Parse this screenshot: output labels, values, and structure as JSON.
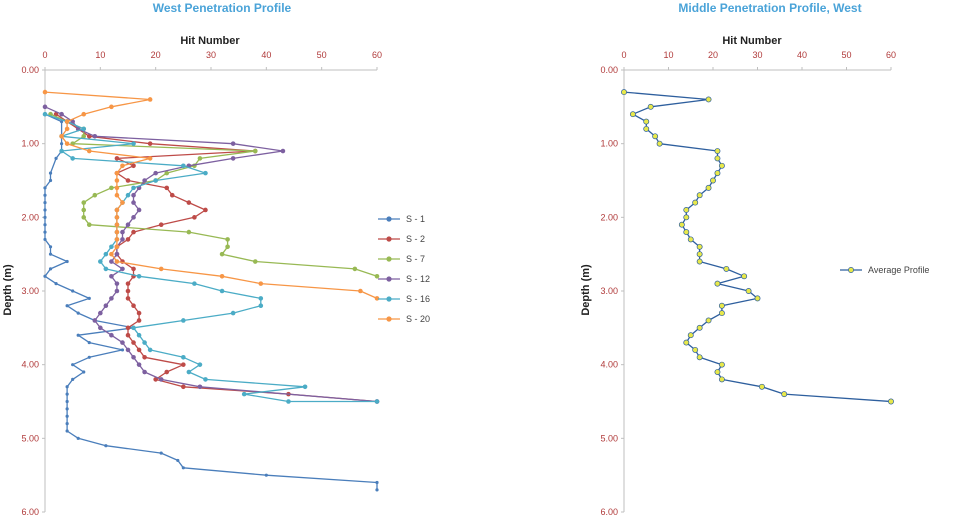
{
  "chart_data": [
    {
      "type": "line",
      "title": "West Penetration Profile",
      "xlabel": "Hit Number",
      "ylabel": "Depth (m)",
      "xlim": [
        0,
        60
      ],
      "ylim": [
        0,
        6
      ],
      "x_ticks": [
        "0",
        "10",
        "20",
        "30",
        "40",
        "50",
        "60"
      ],
      "y_ticks": [
        "0.00",
        "1.00",
        "2.00",
        "3.00",
        "4.00",
        "5.00",
        "6.00"
      ],
      "legend_position": "right",
      "series": [
        {
          "name": "S - 1",
          "color": "#4a7ebb",
          "marker": "small",
          "points": [
            [
              0,
              0.6
            ],
            [
              3,
              0.7
            ],
            [
              3,
              1.0
            ],
            [
              3,
              1.1
            ],
            [
              2,
              1.2
            ],
            [
              1,
              1.4
            ],
            [
              1,
              1.5
            ],
            [
              0,
              1.6
            ],
            [
              0,
              1.7
            ],
            [
              0,
              1.8
            ],
            [
              0,
              1.9
            ],
            [
              0,
              2.0
            ],
            [
              0,
              2.1
            ],
            [
              0,
              2.2
            ],
            [
              0,
              2.3
            ],
            [
              1,
              2.4
            ],
            [
              1,
              2.5
            ],
            [
              4,
              2.6
            ],
            [
              1,
              2.7
            ],
            [
              0,
              2.8
            ],
            [
              2,
              2.9
            ],
            [
              5,
              3.0
            ],
            [
              8,
              3.1
            ],
            [
              4,
              3.2
            ],
            [
              6,
              3.3
            ],
            [
              9,
              3.4
            ],
            [
              16,
              3.5
            ],
            [
              6,
              3.6
            ],
            [
              8,
              3.7
            ],
            [
              14,
              3.8
            ],
            [
              8,
              3.9
            ],
            [
              5,
              4.0
            ],
            [
              7,
              4.1
            ],
            [
              5,
              4.2
            ],
            [
              4,
              4.3
            ],
            [
              4,
              4.4
            ],
            [
              4,
              4.5
            ],
            [
              4,
              4.6
            ],
            [
              4,
              4.7
            ],
            [
              4,
              4.8
            ],
            [
              4,
              4.9
            ],
            [
              6,
              5.0
            ],
            [
              11,
              5.1
            ],
            [
              21,
              5.2
            ],
            [
              24,
              5.3
            ],
            [
              25,
              5.4
            ],
            [
              40,
              5.5
            ],
            [
              60,
              5.6
            ],
            [
              60,
              5.7
            ]
          ]
        },
        {
          "name": "S - 2",
          "color": "#be4b48",
          "marker": "circle",
          "points": [
            [
              2,
              0.6
            ],
            [
              4,
              0.7
            ],
            [
              6,
              0.8
            ],
            [
              8,
              0.9
            ],
            [
              19,
              1.0
            ],
            [
              38,
              1.1
            ],
            [
              13,
              1.2
            ],
            [
              16,
              1.3
            ],
            [
              13,
              1.4
            ],
            [
              15,
              1.5
            ],
            [
              22,
              1.6
            ],
            [
              23,
              1.7
            ],
            [
              26,
              1.8
            ],
            [
              29,
              1.9
            ],
            [
              27,
              2.0
            ],
            [
              21,
              2.1
            ],
            [
              16,
              2.2
            ],
            [
              15,
              2.3
            ],
            [
              13,
              2.4
            ],
            [
              13,
              2.5
            ],
            [
              14,
              2.6
            ],
            [
              16,
              2.7
            ],
            [
              16,
              2.8
            ],
            [
              15,
              2.9
            ],
            [
              15,
              3.0
            ],
            [
              15,
              3.1
            ],
            [
              16,
              3.2
            ],
            [
              17,
              3.3
            ],
            [
              17,
              3.4
            ],
            [
              15,
              3.5
            ],
            [
              15,
              3.6
            ],
            [
              16,
              3.7
            ],
            [
              17,
              3.8
            ],
            [
              18,
              3.9
            ],
            [
              25,
              4.0
            ],
            [
              22,
              4.1
            ],
            [
              20,
              4.2
            ],
            [
              25,
              4.3
            ],
            [
              44,
              4.4
            ],
            [
              60,
              4.5
            ]
          ]
        },
        {
          "name": "S - 7",
          "color": "#98b954",
          "marker": "circle",
          "points": [
            [
              1,
              0.6
            ],
            [
              4,
              0.7
            ],
            [
              7,
              0.8
            ],
            [
              7,
              0.9
            ],
            [
              5,
              1.0
            ],
            [
              38,
              1.1
            ],
            [
              28,
              1.2
            ],
            [
              27,
              1.3
            ],
            [
              22,
              1.4
            ],
            [
              20,
              1.5
            ],
            [
              12,
              1.6
            ],
            [
              9,
              1.7
            ],
            [
              7,
              1.8
            ],
            [
              7,
              1.9
            ],
            [
              7,
              2.0
            ],
            [
              8,
              2.1
            ],
            [
              26,
              2.2
            ],
            [
              33,
              2.3
            ],
            [
              33,
              2.4
            ],
            [
              32,
              2.5
            ],
            [
              38,
              2.6
            ],
            [
              56,
              2.7
            ],
            [
              60,
              2.8
            ]
          ]
        },
        {
          "name": "S - 12",
          "color": "#7d60a0",
          "marker": "circle",
          "points": [
            [
              0,
              0.5
            ],
            [
              3,
              0.6
            ],
            [
              5,
              0.7
            ],
            [
              6,
              0.8
            ],
            [
              9,
              0.9
            ],
            [
              34,
              1.0
            ],
            [
              43,
              1.1
            ],
            [
              34,
              1.2
            ],
            [
              26,
              1.3
            ],
            [
              20,
              1.4
            ],
            [
              18,
              1.5
            ],
            [
              17,
              1.6
            ],
            [
              16,
              1.7
            ],
            [
              16,
              1.8
            ],
            [
              17,
              1.9
            ],
            [
              16,
              2.0
            ],
            [
              15,
              2.1
            ],
            [
              14,
              2.2
            ],
            [
              14,
              2.3
            ],
            [
              13,
              2.4
            ],
            [
              13,
              2.5
            ],
            [
              12,
              2.6
            ],
            [
              14,
              2.7
            ],
            [
              12,
              2.8
            ],
            [
              13,
              2.9
            ],
            [
              13,
              3.0
            ],
            [
              12,
              3.1
            ],
            [
              11,
              3.2
            ],
            [
              10,
              3.3
            ],
            [
              9,
              3.4
            ],
            [
              10,
              3.5
            ],
            [
              12,
              3.6
            ],
            [
              14,
              3.7
            ],
            [
              15,
              3.8
            ],
            [
              16,
              3.9
            ],
            [
              17,
              4.0
            ],
            [
              18,
              4.1
            ],
            [
              21,
              4.2
            ],
            [
              28,
              4.3
            ],
            [
              60,
              4.5
            ]
          ]
        },
        {
          "name": "S - 16",
          "color": "#4bacc6",
          "marker": "circle",
          "points": [
            [
              0,
              0.6
            ],
            [
              4,
              0.7
            ],
            [
              7,
              0.8
            ],
            [
              3,
              0.9
            ],
            [
              16,
              1.0
            ],
            [
              3,
              1.1
            ],
            [
              5,
              1.2
            ],
            [
              25,
              1.3
            ],
            [
              29,
              1.4
            ],
            [
              20,
              1.5
            ],
            [
              16,
              1.6
            ],
            [
              15,
              1.7
            ],
            [
              14,
              1.8
            ],
            [
              13,
              1.9
            ],
            [
              13,
              2.0
            ],
            [
              13,
              2.1
            ],
            [
              13,
              2.2
            ],
            [
              13,
              2.3
            ],
            [
              12,
              2.4
            ],
            [
              11,
              2.5
            ],
            [
              10,
              2.6
            ],
            [
              11,
              2.7
            ],
            [
              17,
              2.8
            ],
            [
              27,
              2.9
            ],
            [
              32,
              3.0
            ],
            [
              39,
              3.1
            ],
            [
              39,
              3.2
            ],
            [
              34,
              3.3
            ],
            [
              25,
              3.4
            ],
            [
              16,
              3.5
            ],
            [
              17,
              3.6
            ],
            [
              18,
              3.7
            ],
            [
              19,
              3.8
            ],
            [
              25,
              3.9
            ],
            [
              28,
              4.0
            ],
            [
              26,
              4.1
            ],
            [
              29,
              4.2
            ],
            [
              47,
              4.3
            ],
            [
              36,
              4.4
            ],
            [
              44,
              4.5
            ],
            [
              60,
              4.5
            ]
          ]
        },
        {
          "name": "S - 20",
          "color": "#f79646",
          "marker": "circle",
          "points": [
            [
              0,
              0.3
            ],
            [
              19,
              0.4
            ],
            [
              12,
              0.5
            ],
            [
              7,
              0.6
            ],
            [
              4,
              0.7
            ],
            [
              4,
              0.8
            ],
            [
              3,
              0.9
            ],
            [
              4,
              1.0
            ],
            [
              8,
              1.1
            ],
            [
              19,
              1.2
            ],
            [
              14,
              1.3
            ],
            [
              13,
              1.4
            ],
            [
              13,
              1.5
            ],
            [
              13,
              1.6
            ],
            [
              13,
              1.7
            ],
            [
              14,
              1.8
            ],
            [
              13,
              1.9
            ],
            [
              13,
              2.0
            ],
            [
              13,
              2.1
            ],
            [
              13,
              2.2
            ],
            [
              13,
              2.3
            ],
            [
              13,
              2.4
            ],
            [
              12,
              2.5
            ],
            [
              13,
              2.6
            ],
            [
              21,
              2.7
            ],
            [
              32,
              2.8
            ],
            [
              39,
              2.9
            ],
            [
              57,
              3.0
            ],
            [
              60,
              3.1
            ]
          ]
        }
      ]
    },
    {
      "type": "line",
      "title": "Middle Penetration Profile, West",
      "xlabel": "Hit Number",
      "ylabel": "Depth (m)",
      "xlim": [
        0,
        60
      ],
      "ylim": [
        0,
        6
      ],
      "x_ticks": [
        "0",
        "10",
        "20",
        "30",
        "40",
        "50",
        "60"
      ],
      "y_ticks": [
        "0.00",
        "1.00",
        "2.00",
        "3.00",
        "4.00",
        "5.00",
        "6.00"
      ],
      "legend_position": "right",
      "series": [
        {
          "name": "Average Profile",
          "color": "#2e5f9e",
          "marker_fill": "#e8e84a",
          "marker": "circle",
          "points": [
            [
              0,
              0.3
            ],
            [
              19,
              0.4
            ],
            [
              6,
              0.5
            ],
            [
              2,
              0.6
            ],
            [
              5,
              0.7
            ],
            [
              5,
              0.8
            ],
            [
              7,
              0.9
            ],
            [
              8,
              1.0
            ],
            [
              21,
              1.1
            ],
            [
              21,
              1.2
            ],
            [
              22,
              1.3
            ],
            [
              21,
              1.4
            ],
            [
              20,
              1.5
            ],
            [
              19,
              1.6
            ],
            [
              17,
              1.7
            ],
            [
              16,
              1.8
            ],
            [
              14,
              1.9
            ],
            [
              14,
              2.0
            ],
            [
              13,
              2.1
            ],
            [
              14,
              2.2
            ],
            [
              15,
              2.3
            ],
            [
              17,
              2.4
            ],
            [
              17,
              2.5
            ],
            [
              17,
              2.6
            ],
            [
              23,
              2.7
            ],
            [
              27,
              2.8
            ],
            [
              21,
              2.9
            ],
            [
              28,
              3.0
            ],
            [
              30,
              3.1
            ],
            [
              22,
              3.2
            ],
            [
              22,
              3.3
            ],
            [
              19,
              3.4
            ],
            [
              17,
              3.5
            ],
            [
              15,
              3.6
            ],
            [
              14,
              3.7
            ],
            [
              16,
              3.8
            ],
            [
              17,
              3.9
            ],
            [
              22,
              4.0
            ],
            [
              21,
              4.1
            ],
            [
              22,
              4.2
            ],
            [
              31,
              4.3
            ],
            [
              36,
              4.4
            ],
            [
              60,
              4.5
            ]
          ]
        }
      ]
    }
  ]
}
